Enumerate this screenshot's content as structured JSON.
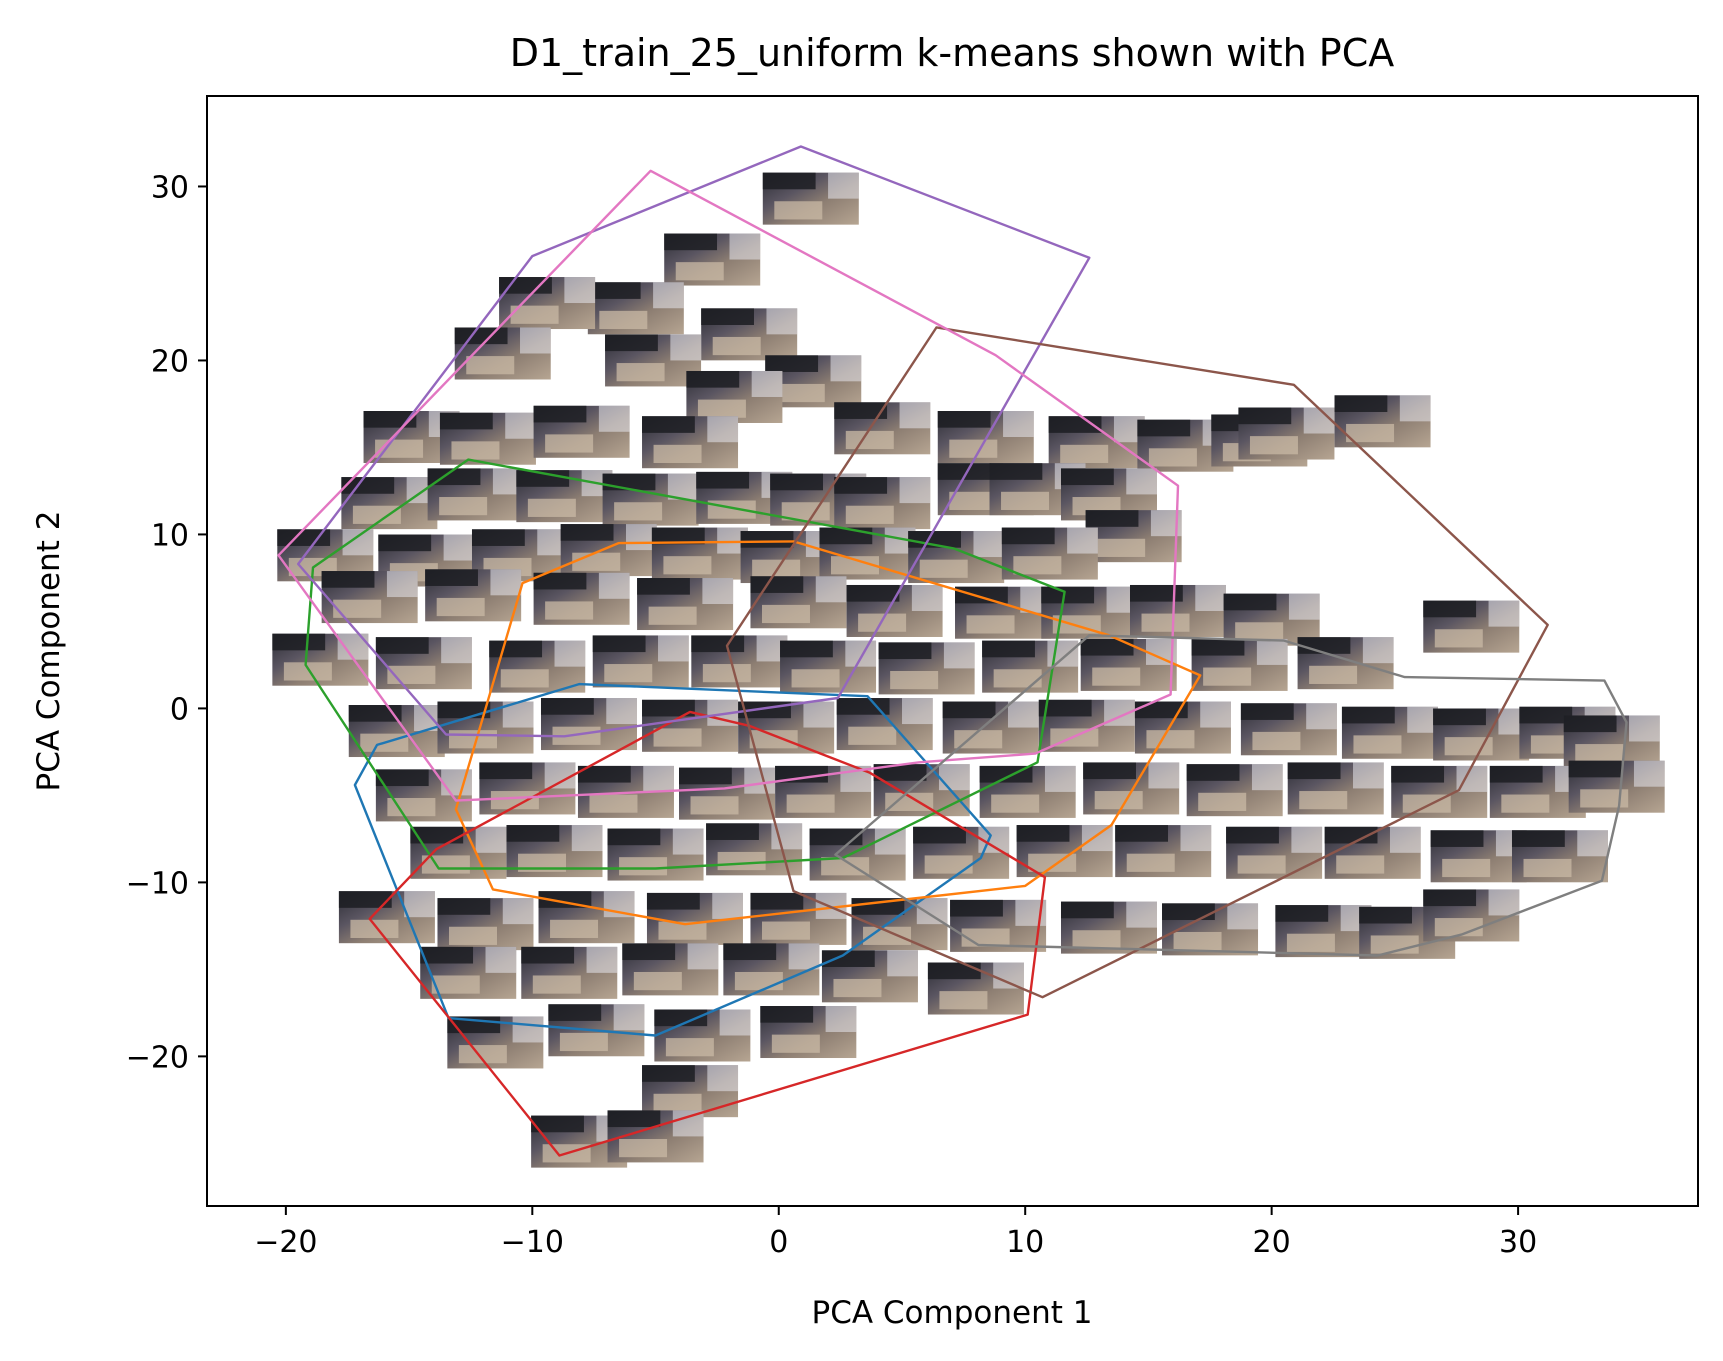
{
  "chart_data": {
    "type": "scatter",
    "title": "D1_train_25_uniform k-means shown with PCA",
    "xlabel": "PCA Component 1",
    "ylabel": "PCA Component 2",
    "xlim": [
      -23.2,
      37.3
    ],
    "ylim": [
      -28.6,
      35.2
    ],
    "x_ticks": [
      -20,
      -10,
      0,
      10,
      20,
      30
    ],
    "y_ticks": [
      -20,
      -10,
      0,
      10,
      20,
      30
    ],
    "x_tick_labels": [
      "−20",
      "−10",
      "0",
      "10",
      "20",
      "30"
    ],
    "y_tick_labels": [
      "−20",
      "−10",
      "0",
      "10",
      "20",
      "30"
    ],
    "grid": false,
    "legend": "none",
    "points_rendered_as": "image thumbnails (kitchen frames)",
    "series": [
      {
        "color": "#1f77b4",
        "hull": [
          [
            -16.3,
            -2.1
          ],
          [
            -17.2,
            -4.4
          ],
          [
            -13.4,
            -17.8
          ],
          [
            -5.0,
            -18.8
          ],
          [
            2.6,
            -14.2
          ],
          [
            8.2,
            -8.6
          ],
          [
            8.6,
            -7.3
          ],
          [
            3.6,
            0.7
          ],
          [
            -8.1,
            1.4
          ]
        ]
      },
      {
        "color": "#ff7f0e",
        "hull": [
          [
            -10.4,
            7.2
          ],
          [
            -6.5,
            9.5
          ],
          [
            0.6,
            9.6
          ],
          [
            13.4,
            4.2
          ],
          [
            17.1,
            1.9
          ],
          [
            13.5,
            -6.7
          ],
          [
            10.0,
            -10.2
          ],
          [
            -3.8,
            -12.4
          ],
          [
            -11.6,
            -10.4
          ],
          [
            -13.1,
            -5.8
          ]
        ]
      },
      {
        "color": "#2ca02c",
        "hull": [
          [
            -12.6,
            14.3
          ],
          [
            -18.9,
            8.1
          ],
          [
            -19.2,
            2.5
          ],
          [
            -13.8,
            -9.2
          ],
          [
            -5.0,
            -9.2
          ],
          [
            2.6,
            -8.6
          ],
          [
            10.5,
            -3.1
          ],
          [
            11.6,
            6.7
          ],
          [
            7.1,
            9.2
          ]
        ]
      },
      {
        "color": "#d62728",
        "hull": [
          [
            -3.6,
            -0.2
          ],
          [
            -1.2,
            -1.0
          ],
          [
            3.7,
            -3.7
          ],
          [
            10.8,
            -9.7
          ],
          [
            10.1,
            -17.6
          ],
          [
            -8.9,
            -25.7
          ],
          [
            -16.6,
            -12.1
          ],
          [
            -13.9,
            -8.1
          ]
        ]
      },
      {
        "color": "#9467bd",
        "hull": [
          [
            0.9,
            32.3
          ],
          [
            12.6,
            25.9
          ],
          [
            2.4,
            0.6
          ],
          [
            -8.7,
            -1.6
          ],
          [
            -13.5,
            -1.5
          ],
          [
            -19.5,
            8.3
          ],
          [
            -10.0,
            26.0
          ]
        ]
      },
      {
        "color": "#8c564b",
        "hull": [
          [
            6.4,
            21.9
          ],
          [
            20.9,
            18.6
          ],
          [
            31.2,
            4.8
          ],
          [
            27.6,
            -4.7
          ],
          [
            10.7,
            -16.6
          ],
          [
            0.6,
            -10.5
          ],
          [
            -2.1,
            3.6
          ]
        ]
      },
      {
        "color": "#e377c2",
        "hull": [
          [
            -5.2,
            30.9
          ],
          [
            8.8,
            20.3
          ],
          [
            16.2,
            12.8
          ],
          [
            15.9,
            0.8
          ],
          [
            10.4,
            -2.6
          ],
          [
            5.7,
            -3.1
          ],
          [
            -2.2,
            -4.6
          ],
          [
            -13.1,
            -5.3
          ],
          [
            -20.3,
            8.8
          ]
        ]
      },
      {
        "color": "#7f7f7f",
        "hull": [
          [
            33.5,
            1.6
          ],
          [
            34.4,
            -0.8
          ],
          [
            34.1,
            -5.6
          ],
          [
            33.4,
            -9.9
          ],
          [
            27.7,
            -13.0
          ],
          [
            24.3,
            -14.2
          ],
          [
            8.1,
            -13.6
          ],
          [
            2.3,
            -8.4
          ],
          [
            12.6,
            4.2
          ],
          [
            20.5,
            3.9
          ],
          [
            25.4,
            1.8
          ]
        ]
      }
    ],
    "thumbnails": [
      [
        1.3,
        29.3
      ],
      [
        -2.7,
        25.8
      ],
      [
        -5.8,
        23.0
      ],
      [
        -9.4,
        23.3
      ],
      [
        -1.2,
        21.5
      ],
      [
        -11.2,
        20.4
      ],
      [
        1.4,
        18.8
      ],
      [
        -5.1,
        20.0
      ],
      [
        -1.8,
        17.9
      ],
      [
        -3.6,
        15.3
      ],
      [
        -14.9,
        15.6
      ],
      [
        -11.8,
        15.5
      ],
      [
        -8.0,
        15.9
      ],
      [
        4.2,
        16.1
      ],
      [
        8.4,
        15.6
      ],
      [
        12.9,
        15.3
      ],
      [
        16.5,
        15.1
      ],
      [
        19.5,
        15.4
      ],
      [
        20.6,
        15.8
      ],
      [
        24.5,
        16.5
      ],
      [
        -15.8,
        11.8
      ],
      [
        -12.3,
        12.3
      ],
      [
        -8.7,
        12.2
      ],
      [
        -5.2,
        12.0
      ],
      [
        -1.4,
        12.1
      ],
      [
        1.6,
        12.0
      ],
      [
        4.2,
        11.8
      ],
      [
        8.4,
        12.6
      ],
      [
        10.5,
        12.6
      ],
      [
        13.4,
        12.3
      ],
      [
        14.4,
        9.9
      ],
      [
        -18.4,
        8.8
      ],
      [
        -14.3,
        8.5
      ],
      [
        -10.5,
        8.8
      ],
      [
        -6.9,
        9.1
      ],
      [
        -3.2,
        8.9
      ],
      [
        0.4,
        8.7
      ],
      [
        3.6,
        8.9
      ],
      [
        7.2,
        8.7
      ],
      [
        11.0,
        8.9
      ],
      [
        -16.6,
        6.4
      ],
      [
        -12.4,
        6.5
      ],
      [
        -8.0,
        6.3
      ],
      [
        -3.8,
        6.0
      ],
      [
        0.8,
        6.1
      ],
      [
        4.7,
        5.6
      ],
      [
        9.1,
        5.5
      ],
      [
        12.6,
        5.5
      ],
      [
        16.2,
        5.6
      ],
      [
        20.0,
        5.1
      ],
      [
        -18.6,
        2.8
      ],
      [
        -14.4,
        2.6
      ],
      [
        -9.8,
        2.4
      ],
      [
        -5.6,
        2.7
      ],
      [
        -1.6,
        2.7
      ],
      [
        2.0,
        2.4
      ],
      [
        6.0,
        2.3
      ],
      [
        10.2,
        2.4
      ],
      [
        14.2,
        2.5
      ],
      [
        18.7,
        2.5
      ],
      [
        23.0,
        2.6
      ],
      [
        28.1,
        4.7
      ],
      [
        -15.5,
        -1.3
      ],
      [
        -11.9,
        -1.1
      ],
      [
        -7.7,
        -0.9
      ],
      [
        -3.6,
        -1.0
      ],
      [
        0.3,
        -1.1
      ],
      [
        4.3,
        -0.9
      ],
      [
        8.6,
        -1.1
      ],
      [
        12.5,
        -1.0
      ],
      [
        16.4,
        -1.1
      ],
      [
        20.7,
        -1.2
      ],
      [
        24.8,
        -1.4
      ],
      [
        28.5,
        -1.5
      ],
      [
        32.0,
        -1.4
      ],
      [
        33.8,
        -1.9
      ],
      [
        -14.4,
        -5.0
      ],
      [
        -10.2,
        -4.6
      ],
      [
        -6.2,
        -4.8
      ],
      [
        -2.1,
        -4.9
      ],
      [
        1.8,
        -4.8
      ],
      [
        5.8,
        -4.7
      ],
      [
        10.1,
        -4.8
      ],
      [
        14.3,
        -4.6
      ],
      [
        18.5,
        -4.7
      ],
      [
        22.6,
        -4.6
      ],
      [
        26.8,
        -4.8
      ],
      [
        30.8,
        -4.8
      ],
      [
        34.0,
        -4.5
      ],
      [
        -13.0,
        -8.3
      ],
      [
        -9.1,
        -8.2
      ],
      [
        -5.0,
        -8.4
      ],
      [
        -1.0,
        -8.1
      ],
      [
        3.2,
        -8.4
      ],
      [
        7.4,
        -8.3
      ],
      [
        11.6,
        -8.2
      ],
      [
        15.6,
        -8.2
      ],
      [
        20.1,
        -8.3
      ],
      [
        24.1,
        -8.3
      ],
      [
        28.4,
        -8.5
      ],
      [
        31.7,
        -8.5
      ],
      [
        -15.9,
        -12.0
      ],
      [
        -11.9,
        -12.4
      ],
      [
        -7.8,
        -12.0
      ],
      [
        -3.4,
        -12.1
      ],
      [
        0.8,
        -12.1
      ],
      [
        4.9,
        -12.4
      ],
      [
        8.9,
        -12.5
      ],
      [
        13.4,
        -12.6
      ],
      [
        17.5,
        -12.7
      ],
      [
        22.1,
        -12.8
      ],
      [
        25.5,
        -12.9
      ],
      [
        28.1,
        -11.9
      ],
      [
        -12.6,
        -15.2
      ],
      [
        -8.5,
        -15.2
      ],
      [
        -4.4,
        -15.0
      ],
      [
        -0.3,
        -15.0
      ],
      [
        3.7,
        -15.4
      ],
      [
        8.0,
        -16.1
      ],
      [
        -11.5,
        -19.2
      ],
      [
        -7.4,
        -18.5
      ],
      [
        -3.1,
        -18.8
      ],
      [
        1.2,
        -18.6
      ],
      [
        -3.6,
        -22.0
      ],
      [
        -8.1,
        -24.9
      ],
      [
        -5.0,
        -24.6
      ]
    ]
  }
}
